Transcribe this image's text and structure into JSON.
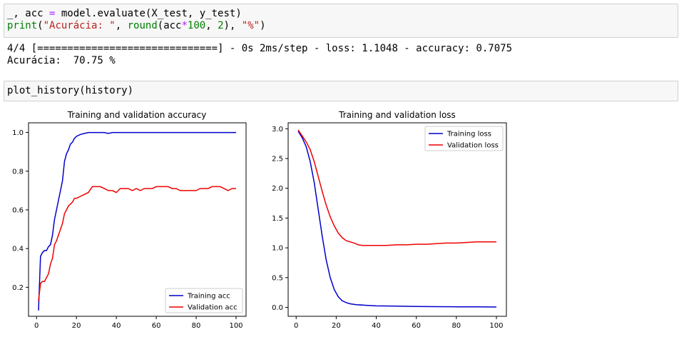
{
  "cell1": {
    "line1_a": "_, acc ",
    "line1_eq": "=",
    "line1_b": " model.evaluate(X_test, y_test)",
    "line2_print": "print",
    "line2_open": "(",
    "line2_str": "\"Acurácia: \"",
    "line2_comma": ", ",
    "line2_round": "round",
    "line2_arg": "(acc",
    "line2_mul": "*",
    "line2_100": "100",
    "line2_comma2": ", ",
    "line2_2": "2",
    "line2_close": "), ",
    "line2_pct": "\"%\"",
    "line2_end": ")"
  },
  "output1": {
    "line1": "4/4 [==============================] - 0s 2ms/step - loss: 1.1048 - accuracy: 0.7075",
    "line2": "Acurácia:  70.75 %"
  },
  "cell2": {
    "code": "plot_history(history)"
  },
  "colors": {
    "train": "#0000cc",
    "val": "#ee0000"
  },
  "chart_data": [
    {
      "type": "line",
      "title": "Training and validation accuracy",
      "xlim": [
        -4,
        105
      ],
      "ylim": [
        0.05,
        1.05
      ],
      "xticks": [
        0,
        20,
        40,
        60,
        80,
        100
      ],
      "yticks": [
        0.2,
        0.4,
        0.6,
        0.8,
        1.0
      ],
      "xtick_labels": [
        "0",
        "20",
        "40",
        "60",
        "80",
        "100"
      ],
      "ytick_labels": [
        "0.2",
        "0.4",
        "0.6",
        "0.8",
        "1.0"
      ],
      "legend_position": "lower right",
      "legend": [
        "Training acc",
        "Validation acc"
      ],
      "series": [
        {
          "name": "Training acc",
          "x": [
            1,
            2,
            3,
            4,
            5,
            6,
            7,
            8,
            9,
            10,
            11,
            12,
            13,
            14,
            15,
            16,
            17,
            18,
            19,
            20,
            22,
            24,
            26,
            28,
            30,
            32,
            34,
            36,
            38,
            40,
            50,
            60,
            70,
            80,
            90,
            100
          ],
          "y": [
            0.08,
            0.36,
            0.38,
            0.39,
            0.39,
            0.41,
            0.42,
            0.47,
            0.55,
            0.6,
            0.65,
            0.7,
            0.75,
            0.85,
            0.89,
            0.91,
            0.94,
            0.95,
            0.97,
            0.98,
            0.99,
            0.995,
            1.0,
            1.0,
            1.0,
            1.0,
            1.0,
            0.995,
            1.0,
            1.0,
            1.0,
            1.0,
            1.0,
            1.0,
            1.0,
            1.0
          ]
        },
        {
          "name": "Validation acc",
          "x": [
            1,
            2,
            3,
            4,
            5,
            6,
            7,
            8,
            9,
            10,
            11,
            12,
            13,
            14,
            15,
            16,
            17,
            18,
            19,
            20,
            22,
            24,
            26,
            28,
            30,
            32,
            34,
            36,
            38,
            40,
            42,
            44,
            46,
            48,
            50,
            52,
            54,
            56,
            58,
            60,
            62,
            64,
            66,
            68,
            70,
            72,
            74,
            76,
            78,
            80,
            82,
            84,
            86,
            88,
            90,
            92,
            94,
            96,
            98,
            100
          ],
          "y": [
            0.13,
            0.22,
            0.23,
            0.23,
            0.25,
            0.27,
            0.32,
            0.35,
            0.42,
            0.44,
            0.47,
            0.5,
            0.53,
            0.58,
            0.6,
            0.62,
            0.63,
            0.64,
            0.66,
            0.66,
            0.67,
            0.68,
            0.69,
            0.72,
            0.72,
            0.72,
            0.71,
            0.7,
            0.7,
            0.69,
            0.71,
            0.71,
            0.71,
            0.7,
            0.71,
            0.7,
            0.71,
            0.71,
            0.71,
            0.72,
            0.72,
            0.72,
            0.72,
            0.71,
            0.71,
            0.7,
            0.7,
            0.7,
            0.7,
            0.7,
            0.71,
            0.71,
            0.71,
            0.72,
            0.72,
            0.72,
            0.71,
            0.7,
            0.71,
            0.71
          ]
        }
      ]
    },
    {
      "type": "line",
      "title": "Training and validation loss",
      "xlim": [
        -4,
        105
      ],
      "ylim": [
        -0.15,
        3.1
      ],
      "xticks": [
        0,
        20,
        40,
        60,
        80,
        100
      ],
      "yticks": [
        0.0,
        0.5,
        1.0,
        1.5,
        2.0,
        2.5,
        3.0
      ],
      "xtick_labels": [
        "0",
        "20",
        "40",
        "60",
        "80",
        "100"
      ],
      "ytick_labels": [
        "0.0",
        "0.5",
        "1.0",
        "1.5",
        "2.0",
        "2.5",
        "3.0"
      ],
      "legend_position": "upper right",
      "legend": [
        "Training loss",
        "Validation loss"
      ],
      "series": [
        {
          "name": "Training loss",
          "x": [
            1,
            3,
            5,
            7,
            9,
            11,
            13,
            15,
            17,
            19,
            21,
            23,
            25,
            27,
            30,
            35,
            40,
            50,
            60,
            70,
            80,
            90,
            100
          ],
          "y": [
            2.96,
            2.85,
            2.7,
            2.45,
            2.1,
            1.65,
            1.2,
            0.8,
            0.5,
            0.3,
            0.18,
            0.11,
            0.08,
            0.06,
            0.045,
            0.035,
            0.025,
            0.02,
            0.015,
            0.012,
            0.01,
            0.008,
            0.006
          ]
        },
        {
          "name": "Validation loss",
          "x": [
            1,
            3,
            5,
            7,
            9,
            11,
            13,
            15,
            17,
            19,
            21,
            23,
            25,
            27,
            29,
            31,
            33,
            35,
            40,
            45,
            50,
            55,
            60,
            65,
            70,
            75,
            80,
            85,
            90,
            95,
            100
          ],
          "y": [
            2.98,
            2.88,
            2.78,
            2.65,
            2.45,
            2.2,
            1.95,
            1.72,
            1.52,
            1.37,
            1.25,
            1.17,
            1.12,
            1.1,
            1.08,
            1.05,
            1.04,
            1.04,
            1.04,
            1.04,
            1.05,
            1.05,
            1.06,
            1.06,
            1.07,
            1.08,
            1.08,
            1.09,
            1.1,
            1.1,
            1.1
          ]
        }
      ]
    }
  ]
}
